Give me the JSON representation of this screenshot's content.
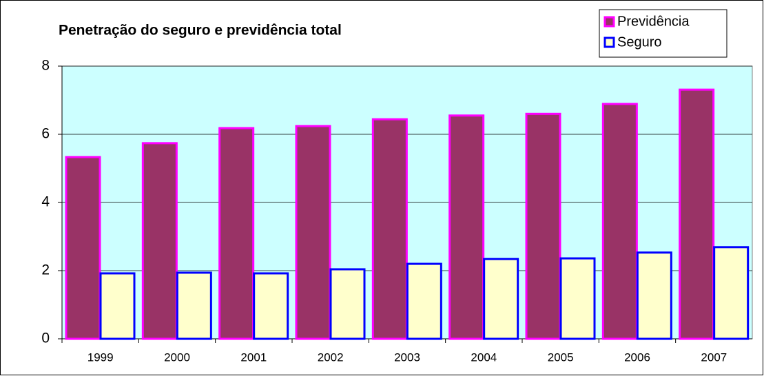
{
  "chart_data": {
    "type": "bar",
    "title": "Penetração do seguro e previdência total",
    "categories": [
      "1999",
      "2000",
      "2001",
      "2002",
      "2003",
      "2004",
      "2005",
      "2006",
      "2007"
    ],
    "series": [
      {
        "name": "Previdência",
        "color": "#993366",
        "border_color": "#ff00ff",
        "values": [
          5.33,
          5.74,
          6.18,
          6.24,
          6.44,
          6.55,
          6.6,
          6.89,
          7.31
        ]
      },
      {
        "name": "Seguro",
        "color": "#ffffcc",
        "border_color": "#0000ff",
        "values": [
          1.92,
          1.94,
          1.92,
          2.04,
          2.2,
          2.34,
          2.36,
          2.53,
          2.69
        ]
      }
    ],
    "ylim": [
      0,
      8
    ],
    "yticks": [
      0,
      2,
      4,
      6,
      8
    ],
    "grid": true,
    "legend": "top-right",
    "plot_background": "#ccffff"
  }
}
